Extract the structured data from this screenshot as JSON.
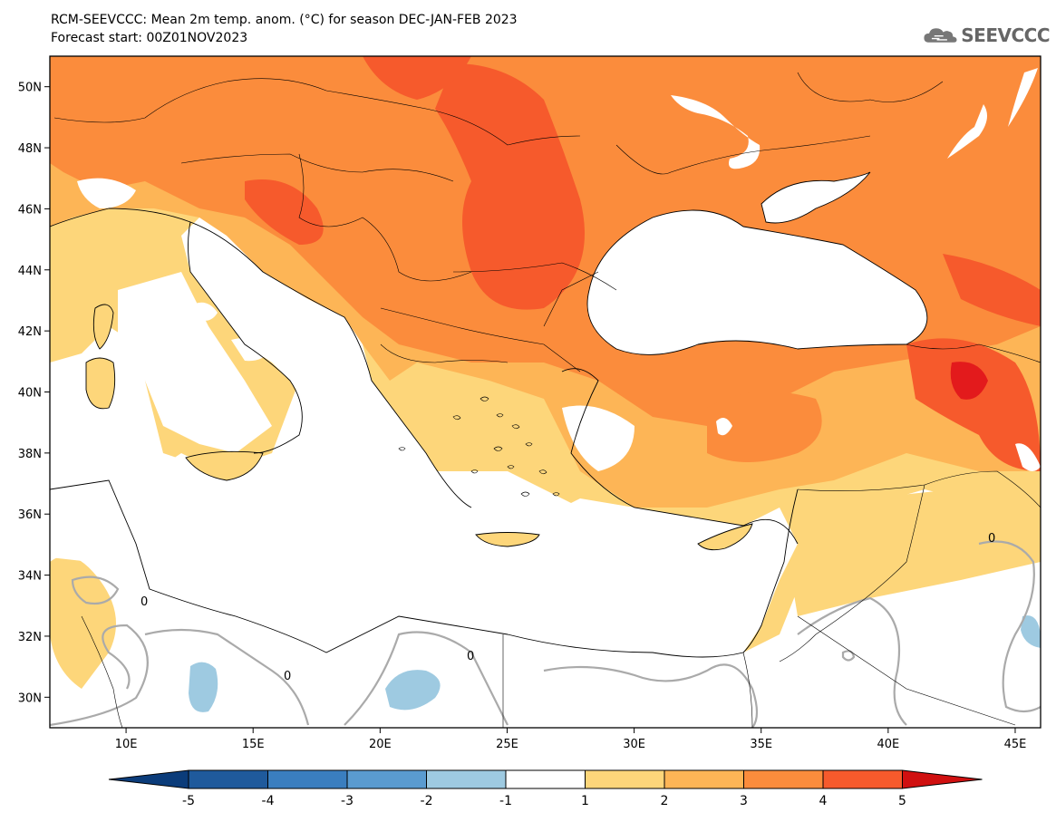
{
  "header": {
    "title_line1": "RCM-SEEVCCC: Mean 2m temp. anom. (°C) for season DEC-JAN-FEB 2023",
    "title_line2": "Forecast start: 00Z01NOV2023"
  },
  "logo": {
    "icon": "cloud-icon",
    "text": "SEEVCCC"
  },
  "map": {
    "lon_range": [
      7,
      46
    ],
    "lat_range": [
      29,
      51
    ],
    "lon_ticks": [
      "10E",
      "15E",
      "20E",
      "25E",
      "30E",
      "35E",
      "40E",
      "45E"
    ],
    "lat_ticks": [
      "50N",
      "48N",
      "46N",
      "44N",
      "42N",
      "40N",
      "38N",
      "36N",
      "34N",
      "32N",
      "30N"
    ],
    "contour_label": "0"
  },
  "colorbar": {
    "levels": [
      "-5",
      "-4",
      "-3",
      "-2",
      "-1",
      "1",
      "2",
      "3",
      "4",
      "5"
    ],
    "colors": [
      "#1f5a9c",
      "#3a7ebf",
      "#5a9bd0",
      "#9ecae1",
      "#ffffff",
      "#fdd67a",
      "#fdb556",
      "#fb8c3c",
      "#f65a2c",
      "#e31a1c",
      "#c51b1b"
    ],
    "underflow_color": "#0b3c7a",
    "overflow_color": "#d01010"
  }
}
